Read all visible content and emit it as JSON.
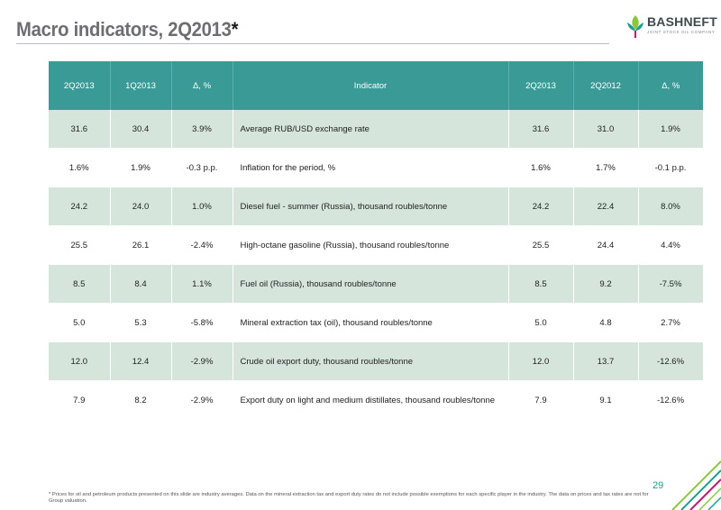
{
  "slide": {
    "title": "Macro indicators, 2Q2013",
    "title_mark": "*",
    "page_number": "29",
    "footnote": "* Prices for oil and petroleum products presented on this slide are industry averages. Data on the mineral extraction tax and export duty rates do not include possible exemptions for each specific player in the industry. The data on prices and tax rates are not for Group valuation."
  },
  "logo": {
    "name": "BASHNEFT",
    "subtitle": "JOINT STOCK OIL COMPANY",
    "colors": {
      "green": "#8cc63f",
      "teal": "#1f9b8f",
      "magenta": "#c0186e"
    }
  },
  "colors": {
    "header_bg": "#3a9a96",
    "row_stripe": "#d6e5dc",
    "title": "#6d6e71"
  },
  "table": {
    "headers": [
      "2Q2013",
      "1Q2013",
      "Δ, %",
      "Indicator",
      "2Q2013",
      "2Q2012",
      "Δ, %"
    ],
    "rows": [
      [
        "31.6",
        "30.4",
        "3.9%",
        "Average RUB/USD exchange rate",
        "31.6",
        "31.0",
        "1.9%"
      ],
      [
        "1.6%",
        "1.9%",
        "-0.3 p.p.",
        "Inflation for the period, %",
        "1.6%",
        "1.7%",
        "-0.1 p.p."
      ],
      [
        "24.2",
        "24.0",
        "1.0%",
        "Diesel fuel - summer (Russia), thousand roubles/tonne",
        "24.2",
        "22.4",
        "8.0%"
      ],
      [
        "25.5",
        "26.1",
        "-2.4%",
        "High-octane gasoline (Russia), thousand roubles/tonne",
        "25.5",
        "24.4",
        "4.4%"
      ],
      [
        "8.5",
        "8.4",
        "1.1%",
        "Fuel oil (Russia), thousand roubles/tonne",
        "8.5",
        "9.2",
        "-7.5%"
      ],
      [
        "5.0",
        "5.3",
        "-5.8%",
        "Mineral extraction tax (oil), thousand roubles/tonne",
        "5.0",
        "4.8",
        "2.7%"
      ],
      [
        "12.0",
        "12.4",
        "-2.9%",
        "Crude oil export duty, thousand roubles/tonne",
        "12.0",
        "13.7",
        "-12.6%"
      ],
      [
        "7.9",
        "8.2",
        "-2.9%",
        "Export duty on light and medium distillates, thousand roubles/tonne",
        "7.9",
        "9.1",
        "-12.6%"
      ]
    ]
  }
}
